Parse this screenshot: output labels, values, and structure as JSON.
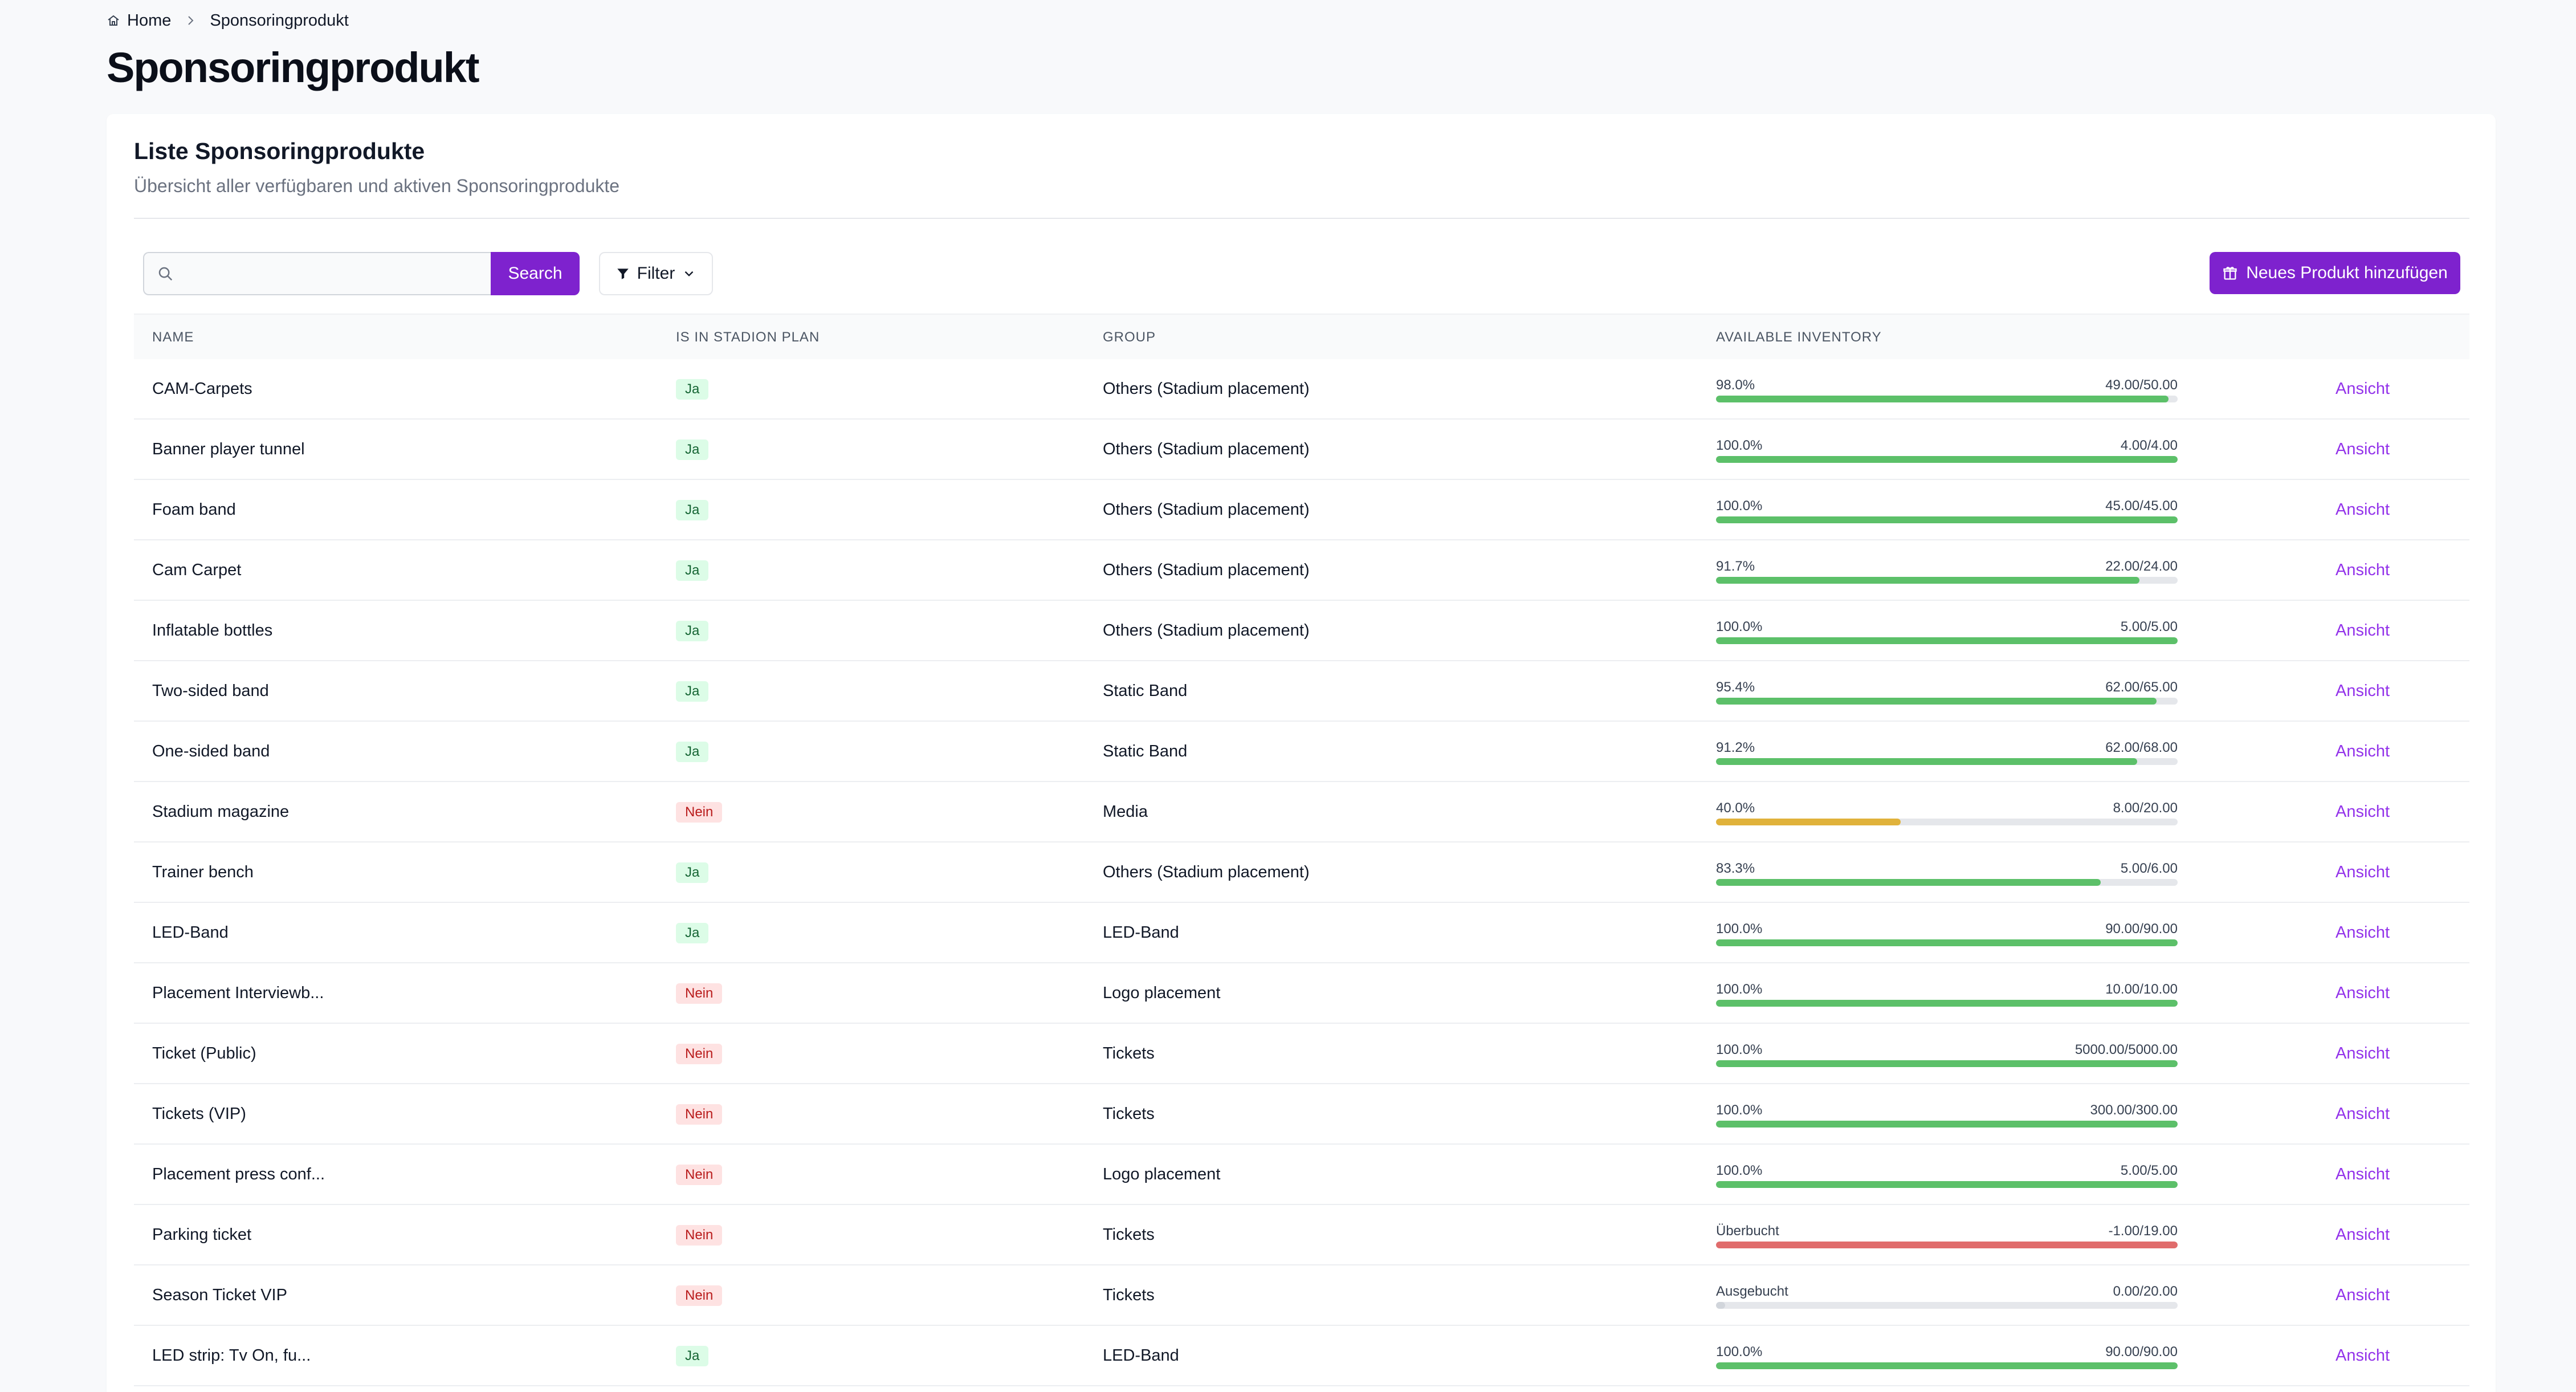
{
  "breadcrumb": {
    "home": "Home",
    "current": "Sponsoringprodukt"
  },
  "page": {
    "title": "Sponsoringprodukt"
  },
  "card": {
    "title": "Liste Sponsoringprodukte",
    "subtitle": "Übersicht aller verfügbaren und aktiven Sponsoringprodukte"
  },
  "toolbar": {
    "search_placeholder": "",
    "search_value": "",
    "search_label": "Search",
    "filter_label": "Filter",
    "add_label": "Neues Produkt hinzufügen"
  },
  "table": {
    "headers": {
      "name": "NAME",
      "plan": "IS IN STADION PLAN",
      "group": "GROUP",
      "inventory": "AVAILABLE INVENTORY"
    },
    "action_label": "Ansicht",
    "colors": {
      "ok": "#5cc069",
      "warn": "#e0b23b",
      "over": "#e06c6c"
    },
    "rows": [
      {
        "name": "CAM-Carpets",
        "plan": "Ja",
        "group": "Others (Stadium placement)",
        "status": "98.0%",
        "fill": 0.98,
        "state": "ok",
        "qty": "49.00/50.00"
      },
      {
        "name": "Banner player tunnel",
        "plan": "Ja",
        "group": "Others (Stadium placement)",
        "status": "100.0%",
        "fill": 1.0,
        "state": "ok",
        "qty": "4.00/4.00"
      },
      {
        "name": "Foam band",
        "plan": "Ja",
        "group": "Others (Stadium placement)",
        "status": "100.0%",
        "fill": 1.0,
        "state": "ok",
        "qty": "45.00/45.00"
      },
      {
        "name": "Cam Carpet",
        "plan": "Ja",
        "group": "Others (Stadium placement)",
        "status": "91.7%",
        "fill": 0.917,
        "state": "ok",
        "qty": "22.00/24.00"
      },
      {
        "name": "Inflatable bottles",
        "plan": "Ja",
        "group": "Others (Stadium placement)",
        "status": "100.0%",
        "fill": 1.0,
        "state": "ok",
        "qty": "5.00/5.00"
      },
      {
        "name": "Two-sided band",
        "plan": "Ja",
        "group": "Static Band",
        "status": "95.4%",
        "fill": 0.954,
        "state": "ok",
        "qty": "62.00/65.00"
      },
      {
        "name": "One-sided band",
        "plan": "Ja",
        "group": "Static Band",
        "status": "91.2%",
        "fill": 0.912,
        "state": "ok",
        "qty": "62.00/68.00"
      },
      {
        "name": "Stadium magazine",
        "plan": "Nein",
        "group": "Media",
        "status": "40.0%",
        "fill": 0.4,
        "state": "warn",
        "qty": "8.00/20.00"
      },
      {
        "name": "Trainer bench",
        "plan": "Ja",
        "group": "Others (Stadium placement)",
        "status": "83.3%",
        "fill": 0.833,
        "state": "ok",
        "qty": "5.00/6.00"
      },
      {
        "name": "LED-Band",
        "plan": "Ja",
        "group": "LED-Band",
        "status": "100.0%",
        "fill": 1.0,
        "state": "ok",
        "qty": "90.00/90.00"
      },
      {
        "name": "Placement Interviewb...",
        "plan": "Nein",
        "group": "Logo placement",
        "status": "100.0%",
        "fill": 1.0,
        "state": "ok",
        "qty": "10.00/10.00"
      },
      {
        "name": "Ticket (Public)",
        "plan": "Nein",
        "group": "Tickets",
        "status": "100.0%",
        "fill": 1.0,
        "state": "ok",
        "qty": "5000.00/5000.00"
      },
      {
        "name": "Tickets (VIP)",
        "plan": "Nein",
        "group": "Tickets",
        "status": "100.0%",
        "fill": 1.0,
        "state": "ok",
        "qty": "300.00/300.00"
      },
      {
        "name": "Placement press conf...",
        "plan": "Nein",
        "group": "Logo placement",
        "status": "100.0%",
        "fill": 1.0,
        "state": "ok",
        "qty": "5.00/5.00"
      },
      {
        "name": "Parking ticket",
        "plan": "Nein",
        "group": "Tickets",
        "status": "Überbucht",
        "fill": 1.0,
        "state": "over",
        "qty": "-1.00/19.00"
      },
      {
        "name": "Season Ticket VIP",
        "plan": "Nein",
        "group": "Tickets",
        "status": "Ausgebucht",
        "fill": 0.02,
        "state": "empty",
        "qty": "0.00/20.00"
      },
      {
        "name": "LED strip: Tv On, fu...",
        "plan": "Ja",
        "group": "LED-Band",
        "status": "100.0%",
        "fill": 1.0,
        "state": "ok",
        "qty": "90.00/90.00"
      }
    ]
  }
}
